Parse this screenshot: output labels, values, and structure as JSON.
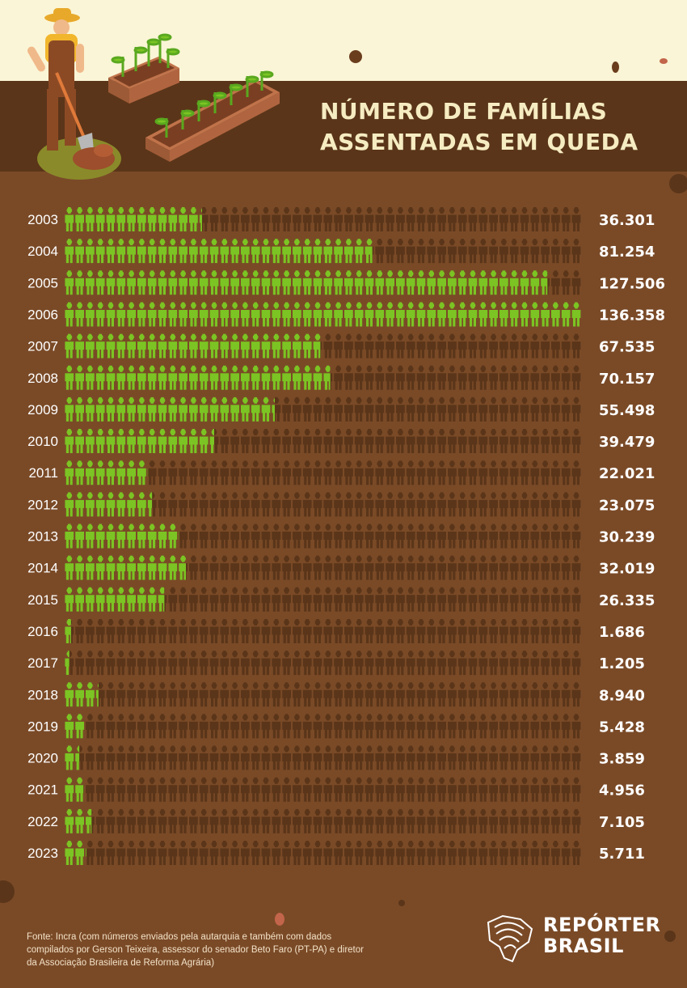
{
  "title_lines": [
    "NÚMERO DE FAMÍLIAS",
    "ASSENTADAS EM QUEDA"
  ],
  "source_text": "Fonte: Incra (com números enviados pela autarquia e também com dados compilados por Gerson Teixeira, assessor do senador Beto Faro (PT-PA) e diretor da Associação Brasileira de Reforma Agrária)",
  "logo": {
    "line1": "REPÓRTER",
    "line2": "BRASIL",
    "icon": "brazil-map-fingerprint-icon"
  },
  "colors": {
    "filled": "#7cc423",
    "empty": "#5a3519",
    "background": "#7a4a27",
    "title_band": "#5a3519",
    "title_text": "#f6ecc2",
    "top_band": "#faf5d6"
  },
  "chart_data": {
    "type": "bar",
    "encoding": "pictogram row per year; green figures show the share of the maximum, brown figures the remainder",
    "title": "NÚMERO DE FAMÍLIAS ASSENTADAS EM QUEDA",
    "xlabel": "",
    "ylabel": "",
    "ylim": [
      0,
      136358
    ],
    "categories": [
      "2003",
      "2004",
      "2005",
      "2006",
      "2007",
      "2008",
      "2009",
      "2010",
      "2011",
      "2012",
      "2013",
      "2014",
      "2015",
      "2016",
      "2017",
      "2018",
      "2019",
      "2020",
      "2021",
      "2022",
      "2023"
    ],
    "values": [
      36301,
      81254,
      127506,
      136358,
      67535,
      70157,
      55498,
      39479,
      22021,
      23075,
      30239,
      32019,
      26335,
      1686,
      1205,
      8940,
      5428,
      3859,
      4956,
      7105,
      5711
    ],
    "value_labels": [
      "36.301",
      "81.254",
      "127.506",
      "136.358",
      "67.535",
      "70.157",
      "55.498",
      "39.479",
      "22.021",
      "23.075",
      "30.239",
      "32.019",
      "26.335",
      "1.686",
      "1.205",
      "8.940",
      "5.428",
      "3.859",
      "4.956",
      "7.105",
      "5.711"
    ]
  }
}
